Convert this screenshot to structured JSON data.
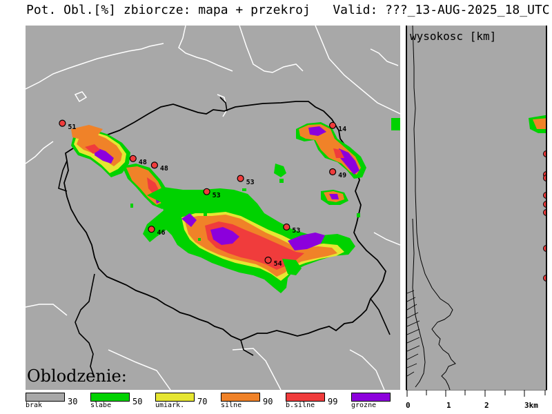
{
  "title": "Pot. Obl.[%] zbiorcze: mapa + przekroj   Valid: ???_13-AUG-2025_18_UTC",
  "map": {
    "label": "Oblodzenie:",
    "stations": [
      {
        "value": "51",
        "lon": 14.6,
        "lat": 53.3
      },
      {
        "value": "48",
        "lon": 16.9,
        "lat": 52.5
      },
      {
        "value": "48",
        "lon": 17.6,
        "lat": 52.35
      },
      {
        "value": "53",
        "lon": 20.4,
        "lat": 52.05
      },
      {
        "value": "53",
        "lon": 19.3,
        "lat": 51.75
      },
      {
        "value": "46",
        "lon": 17.5,
        "lat": 50.9
      },
      {
        "value": "53",
        "lon": 21.9,
        "lat": 50.95
      },
      {
        "value": "54",
        "lon": 21.3,
        "lat": 50.2
      },
      {
        "value": "14",
        "lon": 23.4,
        "lat": 53.25
      },
      {
        "value": "49",
        "lon": 23.4,
        "lat": 52.2
      }
    ]
  },
  "legend": {
    "items": [
      {
        "label": "brak",
        "color": "#a8a8a8",
        "threshold": "30"
      },
      {
        "label": "slabe",
        "color": "#00d200",
        "threshold": "50"
      },
      {
        "label": "umiark.",
        "color": "#e6e632",
        "threshold": "70"
      },
      {
        "label": "silne",
        "color": "#f08228",
        "threshold": "90"
      },
      {
        "label": "b.silne",
        "color": "#f03c3c",
        "threshold": "99"
      },
      {
        "label": "grozne",
        "color": "#8c00dc",
        "threshold": ""
      }
    ]
  },
  "cross_section": {
    "title": "wysokosc [km]",
    "axis_labels": [
      "0",
      "1",
      "2",
      "3km"
    ]
  }
}
